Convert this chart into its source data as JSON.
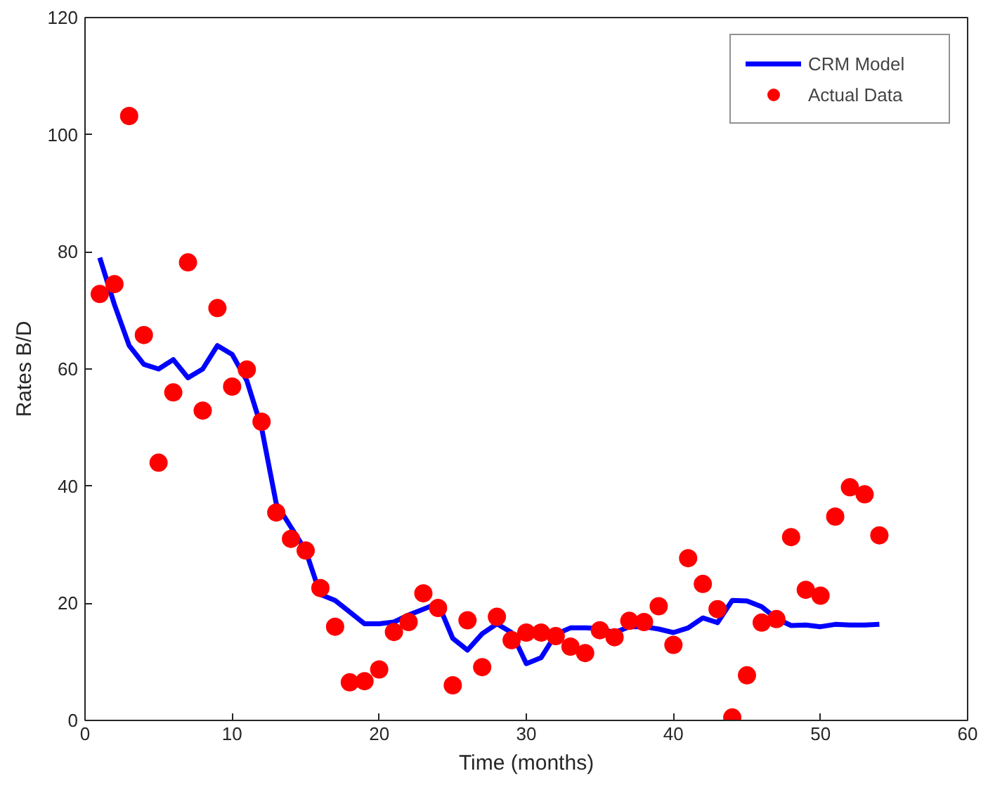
{
  "chart_data": {
    "type": "line",
    "xlabel": "Time (months)",
    "ylabel": "Rates B/D",
    "xlim": [
      0,
      60
    ],
    "xticks": [
      0,
      10,
      20,
      30,
      40,
      50,
      60
    ],
    "ylim": [
      0,
      120
    ],
    "yticks": [
      0,
      20,
      40,
      60,
      80,
      100,
      120
    ],
    "grid": false,
    "legend": "top right",
    "series": [
      {
        "name": "CRM Model",
        "color": "#0000ff",
        "marker": "none",
        "line_style": "solid",
        "x": [
          1,
          2,
          3,
          4,
          5,
          6,
          7,
          8,
          9,
          10,
          11,
          12,
          13,
          14,
          15,
          16,
          17,
          18,
          19,
          20,
          21,
          22,
          23,
          24,
          25,
          26,
          27,
          28,
          29,
          30,
          31,
          32,
          33,
          34,
          35,
          36,
          37,
          38,
          39,
          40,
          41,
          42,
          43,
          44,
          45,
          46,
          47,
          48,
          49,
          50,
          51,
          52,
          53,
          54
        ],
        "values": [
          79,
          71,
          64,
          60.8,
          60,
          61.6,
          58.5,
          60,
          64,
          62.5,
          58,
          50,
          37,
          33,
          29,
          21.5,
          20.5,
          18.5,
          16.5,
          16.5,
          16.8,
          18,
          19,
          20,
          14,
          12,
          14.8,
          16.5,
          15,
          9.7,
          10.7,
          14.7,
          15.8,
          15.8,
          15.7,
          15,
          16,
          16,
          15.6,
          15,
          15.8,
          17.5,
          16.7,
          20.5,
          20.4,
          19.4,
          17.4,
          16.2,
          16.3,
          16,
          16.4,
          16.3,
          16.3,
          16.4
        ]
      },
      {
        "name": "Actual Data",
        "type": "scatter",
        "color": "#ff0000",
        "marker": "circle",
        "x": [
          1,
          2,
          3,
          4,
          5,
          6,
          7,
          8,
          9,
          10,
          11,
          12,
          13,
          14,
          15,
          16,
          17,
          18,
          19,
          20,
          21,
          22,
          23,
          24,
          25,
          26,
          27,
          28,
          29,
          30,
          31,
          32,
          33,
          34,
          35,
          36,
          37,
          38,
          39,
          40,
          41,
          42,
          43,
          44,
          45,
          46,
          47,
          48,
          49,
          50,
          51,
          52,
          53,
          54
        ],
        "values": [
          72.8,
          74.5,
          103.2,
          65.8,
          44,
          56,
          78.2,
          52.9,
          70.4,
          57,
          59.9,
          51,
          35.5,
          31,
          29,
          22.6,
          16,
          6.5,
          6.7,
          8.7,
          15.1,
          16.8,
          21.7,
          19.2,
          6,
          17.1,
          9.1,
          17.7,
          13.7,
          15,
          15,
          14.4,
          12.6,
          11.5,
          15.4,
          14.2,
          17,
          16.8,
          19.5,
          12.9,
          27.7,
          23.3,
          19,
          0.5,
          7.7,
          16.7,
          17.3,
          31.3,
          22.3,
          21.3,
          34.8,
          39.8,
          38.6,
          31.6
        ]
      }
    ]
  }
}
